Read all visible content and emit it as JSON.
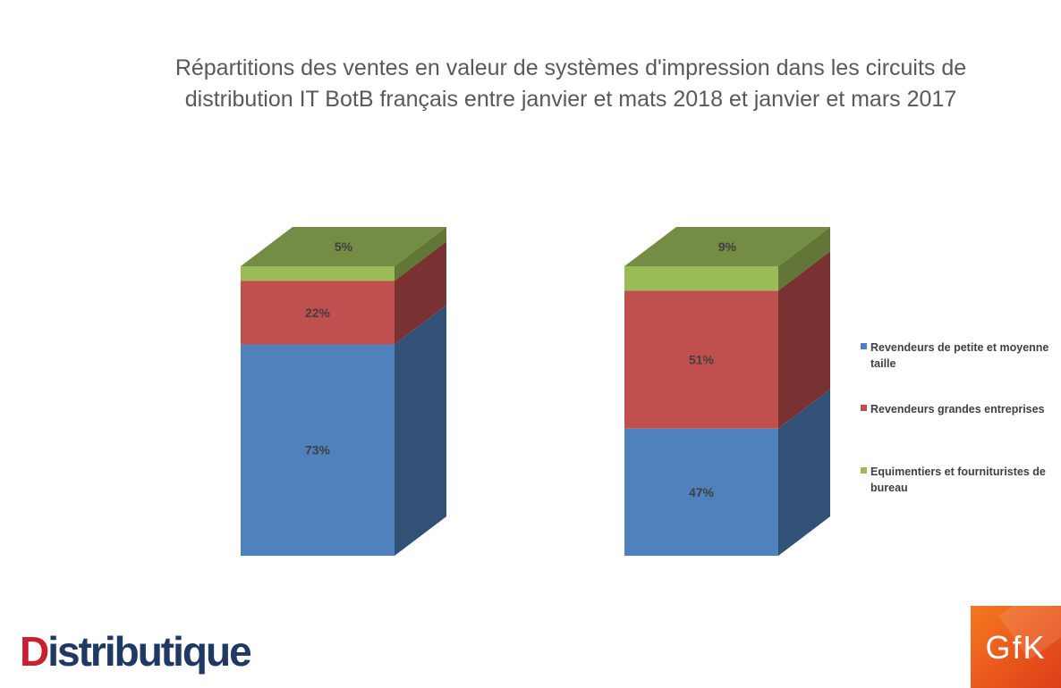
{
  "chart_data": {
    "type": "bar",
    "stacked": true,
    "style": "3d",
    "title_lines": [
      "Répartitions des ventes en valeur de systèmes d'impression dans les circuits de",
      "distribution IT BotB français entre janvier et mats 2018 et janvier et mars 2017"
    ],
    "categories": [
      "",
      ""
    ],
    "series": [
      {
        "name": "Revendeurs de petite et moyenne taille",
        "color": "#4f81bd",
        "values": [
          73,
          47
        ],
        "labels": [
          "73%",
          "47%"
        ]
      },
      {
        "name": "Revendeurs grandes entreprises",
        "color": "#c0504d",
        "values": [
          22,
          51
        ],
        "labels": [
          "22%",
          "51%"
        ]
      },
      {
        "name": "Equimentiers et fournituristes de bureau",
        "color": "#9bbb59",
        "values": [
          5,
          9
        ],
        "labels": [
          "5%",
          "9%"
        ]
      }
    ],
    "legend_lines": [
      [
        "Revendeurs de petite et moyenne",
        "taille"
      ],
      [
        "Revendeurs grandes entreprises"
      ],
      [
        "Equimentiers et fournituristes de",
        "bureau"
      ]
    ],
    "legend_position": "right",
    "grid": false
  },
  "logos": {
    "left": {
      "first": "D",
      "rest": "istributique"
    },
    "right": "GfK"
  }
}
